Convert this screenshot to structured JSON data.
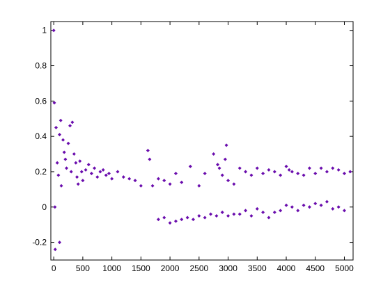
{
  "chart_data": {
    "type": "scatter",
    "title": "",
    "xlabel": "",
    "ylabel": "",
    "xlim": [
      -50,
      5150
    ],
    "ylim": [
      -0.3,
      1.05
    ],
    "grid": false,
    "legend": "none",
    "marker": "diamond",
    "color": "#6a0dad",
    "x_ticks": [
      0,
      500,
      1000,
      1500,
      2000,
      2500,
      3000,
      3500,
      4000,
      4500,
      5000
    ],
    "x_tick_labels": [
      "0",
      "500",
      "1000",
      "1500",
      "2000",
      "2500",
      "3000",
      "3500",
      "4000",
      "4500",
      "5000"
    ],
    "y_ticks": [
      -0.2,
      0,
      0.2,
      0.4,
      0.6,
      0.8,
      1
    ],
    "y_tick_labels": [
      "-0.2",
      "0",
      "0.2",
      "0.4",
      "0.6",
      "0.8",
      "1"
    ],
    "series": [
      {
        "values": [
          [
            0,
            1.0
          ],
          [
            10,
            0.59
          ],
          [
            20,
            0.0
          ],
          [
            25,
            -0.24
          ],
          [
            40,
            0.45
          ],
          [
            60,
            0.25
          ],
          [
            80,
            0.18
          ],
          [
            100,
            0.41
          ],
          [
            100,
            -0.2
          ],
          [
            120,
            0.49
          ],
          [
            130,
            0.12
          ],
          [
            160,
            0.38
          ],
          [
            180,
            0.31
          ],
          [
            200,
            0.27
          ],
          [
            220,
            0.22
          ],
          [
            250,
            0.36
          ],
          [
            280,
            0.46
          ],
          [
            300,
            0.2
          ],
          [
            320,
            0.48
          ],
          [
            350,
            0.3
          ],
          [
            380,
            0.25
          ],
          [
            400,
            0.17
          ],
          [
            420,
            0.13
          ],
          [
            450,
            0.26
          ],
          [
            480,
            0.2
          ],
          [
            500,
            0.15
          ],
          [
            550,
            0.21
          ],
          [
            600,
            0.24
          ],
          [
            650,
            0.19
          ],
          [
            700,
            0.22
          ],
          [
            750,
            0.17
          ],
          [
            800,
            0.2
          ],
          [
            850,
            0.21
          ],
          [
            900,
            0.18
          ],
          [
            950,
            0.19
          ],
          [
            1000,
            0.16
          ],
          [
            1100,
            0.2
          ],
          [
            1200,
            0.17
          ],
          [
            1300,
            0.16
          ],
          [
            1400,
            0.15
          ],
          [
            1500,
            0.12
          ],
          [
            1620,
            0.32
          ],
          [
            1650,
            0.27
          ],
          [
            1700,
            0.12
          ],
          [
            1800,
            0.16
          ],
          [
            1900,
            0.15
          ],
          [
            2000,
            0.13
          ],
          [
            2100,
            0.19
          ],
          [
            2200,
            0.14
          ],
          [
            2350,
            0.23
          ],
          [
            2500,
            0.12
          ],
          [
            2600,
            0.19
          ],
          [
            2750,
            0.3
          ],
          [
            2820,
            0.24
          ],
          [
            2850,
            0.22
          ],
          [
            2900,
            0.18
          ],
          [
            2950,
            0.27
          ],
          [
            2970,
            0.35
          ],
          [
            3000,
            0.15
          ],
          [
            3100,
            0.13
          ],
          [
            3200,
            0.22
          ],
          [
            3300,
            0.2
          ],
          [
            3400,
            0.18
          ],
          [
            3500,
            0.22
          ],
          [
            3600,
            0.19
          ],
          [
            3700,
            0.21
          ],
          [
            3800,
            0.2
          ],
          [
            3900,
            0.18
          ],
          [
            4000,
            0.23
          ],
          [
            4050,
            0.21
          ],
          [
            4100,
            0.2
          ],
          [
            4200,
            0.19
          ],
          [
            4300,
            0.18
          ],
          [
            4400,
            0.22
          ],
          [
            4500,
            0.19
          ],
          [
            4600,
            0.22
          ],
          [
            4700,
            0.2
          ],
          [
            4800,
            0.22
          ],
          [
            4900,
            0.21
          ],
          [
            5000,
            0.19
          ],
          [
            5100,
            0.2
          ],
          [
            3300,
            -0.02
          ],
          [
            3400,
            -0.05
          ],
          [
            3500,
            -0.01
          ],
          [
            3600,
            -0.03
          ],
          [
            3700,
            -0.06
          ],
          [
            3800,
            -0.03
          ],
          [
            3900,
            -0.02
          ],
          [
            4000,
            0.01
          ],
          [
            4100,
            0.0
          ],
          [
            4200,
            -0.02
          ],
          [
            4300,
            0.01
          ],
          [
            4400,
            0.0
          ],
          [
            4500,
            0.02
          ],
          [
            4600,
            0.01
          ],
          [
            4700,
            0.03
          ],
          [
            4800,
            -0.01
          ],
          [
            4900,
            0.0
          ],
          [
            5000,
            -0.02
          ],
          [
            1800,
            -0.07
          ],
          [
            1900,
            -0.06
          ],
          [
            2000,
            -0.09
          ],
          [
            2100,
            -0.08
          ],
          [
            2200,
            -0.07
          ],
          [
            2300,
            -0.06
          ],
          [
            2400,
            -0.07
          ],
          [
            2500,
            -0.05
          ],
          [
            2600,
            -0.06
          ],
          [
            2700,
            -0.04
          ],
          [
            2800,
            -0.05
          ],
          [
            2900,
            -0.03
          ],
          [
            3000,
            -0.05
          ],
          [
            3100,
            -0.04
          ],
          [
            3200,
            -0.04
          ]
        ]
      }
    ]
  }
}
